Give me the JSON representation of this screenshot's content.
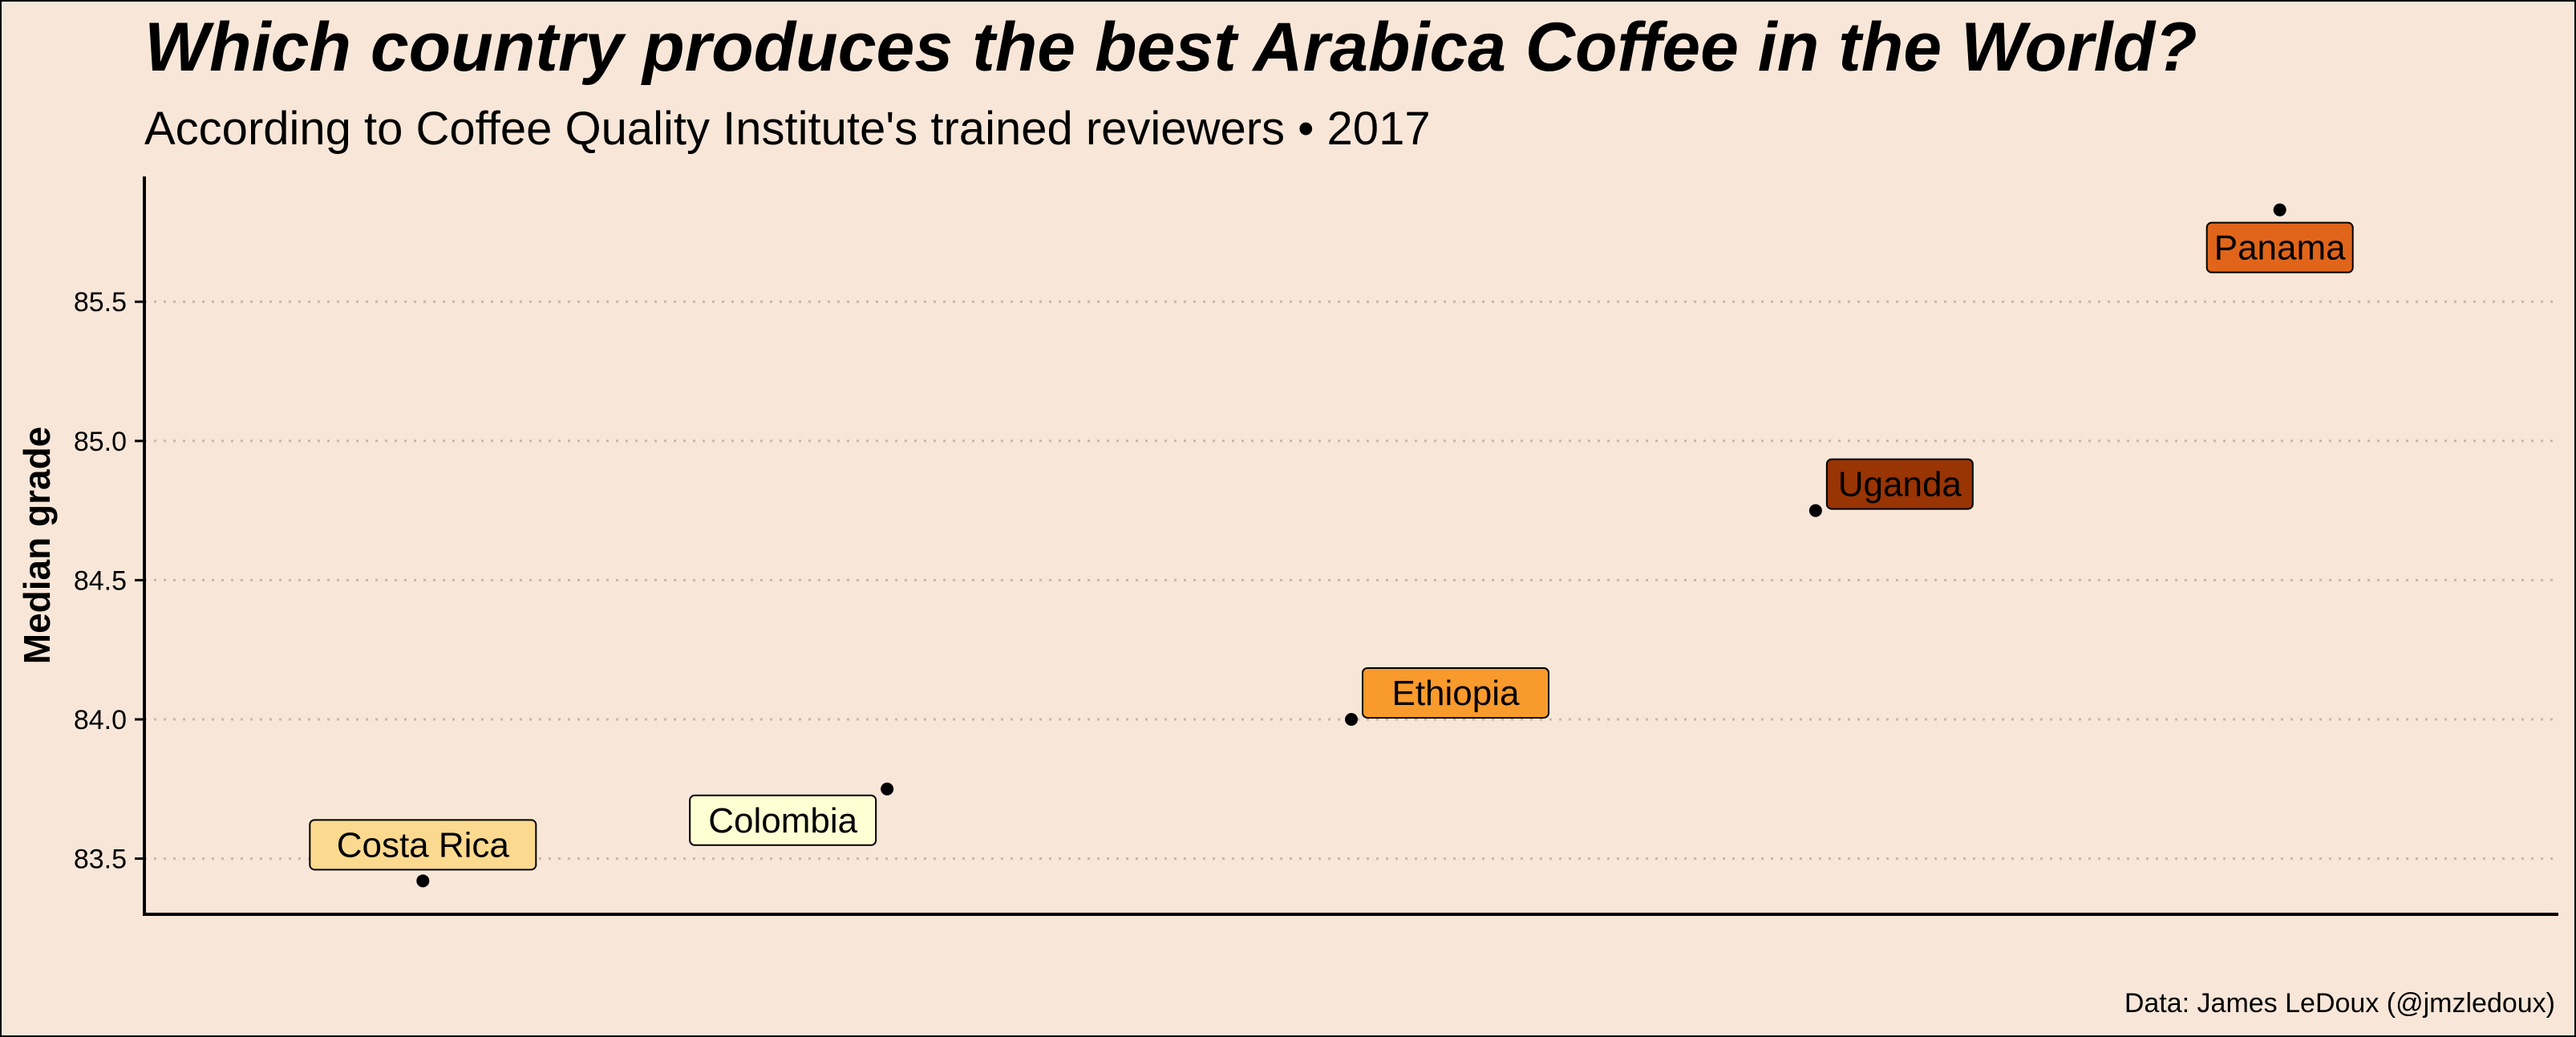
{
  "title": "Which country produces the best Arabica Coffee in the World?",
  "subtitle": "According to Coffee Quality Institute's trained reviewers • 2017",
  "caption": "Data: James LeDoux (@jmzledoux)",
  "colors": {
    "background": "#f8e7d9",
    "grid": "#c8b6a8",
    "point": "#000000"
  },
  "chart_data": {
    "type": "scatter",
    "title": "Which country produces the best Arabica Coffee in the World?",
    "subtitle": "According to Coffee Quality Institute's trained reviewers • 2017",
    "xlabel": "",
    "ylabel": "Median grade",
    "ylim": [
      83.3,
      85.95
    ],
    "yticks": [
      83.5,
      84.0,
      84.5,
      85.0,
      85.5
    ],
    "ytick_labels": [
      "83.5",
      "84.0",
      "84.5",
      "85.0",
      "85.5"
    ],
    "grid": "horizontal dotted",
    "legend": "none",
    "points": [
      {
        "label": "Costa Rica",
        "x": 1,
        "y": 83.42,
        "fill": "#fbd98f",
        "label_side": "above"
      },
      {
        "label": "Colombia",
        "x": 2,
        "y": 83.75,
        "fill": "#ffffd4",
        "label_side": "below-left"
      },
      {
        "label": "Ethiopia",
        "x": 3,
        "y": 84.0,
        "fill": "#f99a2c",
        "label_side": "above-right"
      },
      {
        "label": "Uganda",
        "x": 4,
        "y": 84.75,
        "fill": "#993404",
        "label_side": "above-right"
      },
      {
        "label": "Panama",
        "x": 5,
        "y": 85.83,
        "fill": "#e0651a",
        "label_side": "below"
      }
    ]
  }
}
